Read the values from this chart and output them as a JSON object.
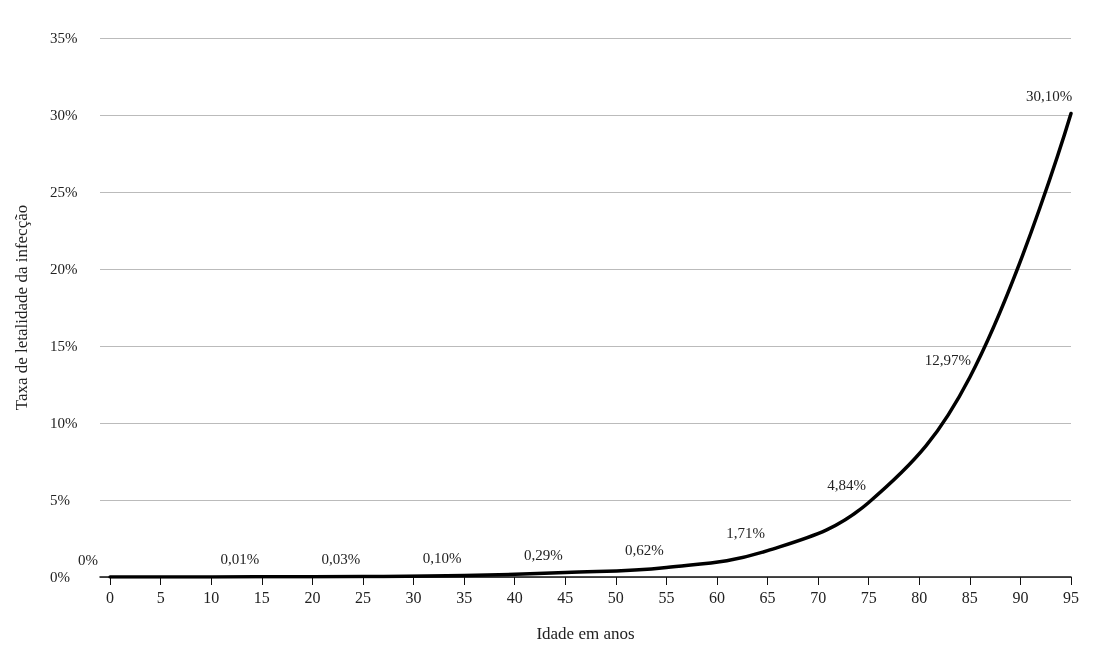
{
  "chart_data": {
    "type": "line",
    "xlabel": "Idade em anos",
    "ylabel": "Taxa de letalidade da infecção",
    "x": [
      0,
      15,
      25,
      35,
      45,
      55,
      65,
      75,
      85,
      95
    ],
    "series": [
      {
        "color": "#000000",
        "values": [
          0,
          0.01,
          0.03,
          0.1,
          0.29,
          0.62,
          1.71,
          4.84,
          12.97,
          30.1
        ],
        "value_labels": [
          "0%",
          "0,01%",
          "0,03%",
          "0,10%",
          "0,29%",
          "0,62%",
          "1,71%",
          "4,84%",
          "12,97%",
          "30,10%"
        ]
      }
    ],
    "xlim": [
      -1,
      95
    ],
    "xticks": [
      0,
      5,
      10,
      15,
      20,
      25,
      30,
      35,
      40,
      45,
      50,
      55,
      60,
      65,
      70,
      75,
      80,
      85,
      90,
      95
    ],
    "ylim": [
      0,
      35
    ],
    "yticks": [
      {
        "value": 0,
        "label": "0%"
      },
      {
        "value": 5,
        "label": "5%"
      },
      {
        "value": 10,
        "label": "10%"
      },
      {
        "value": 15,
        "label": "15%"
      },
      {
        "value": 20,
        "label": "20%"
      },
      {
        "value": 25,
        "label": "25%"
      },
      {
        "value": 30,
        "label": "30%"
      },
      {
        "value": 35,
        "label": "35%"
      }
    ],
    "grid": "y",
    "marker": "none",
    "line_style": "solid"
  }
}
